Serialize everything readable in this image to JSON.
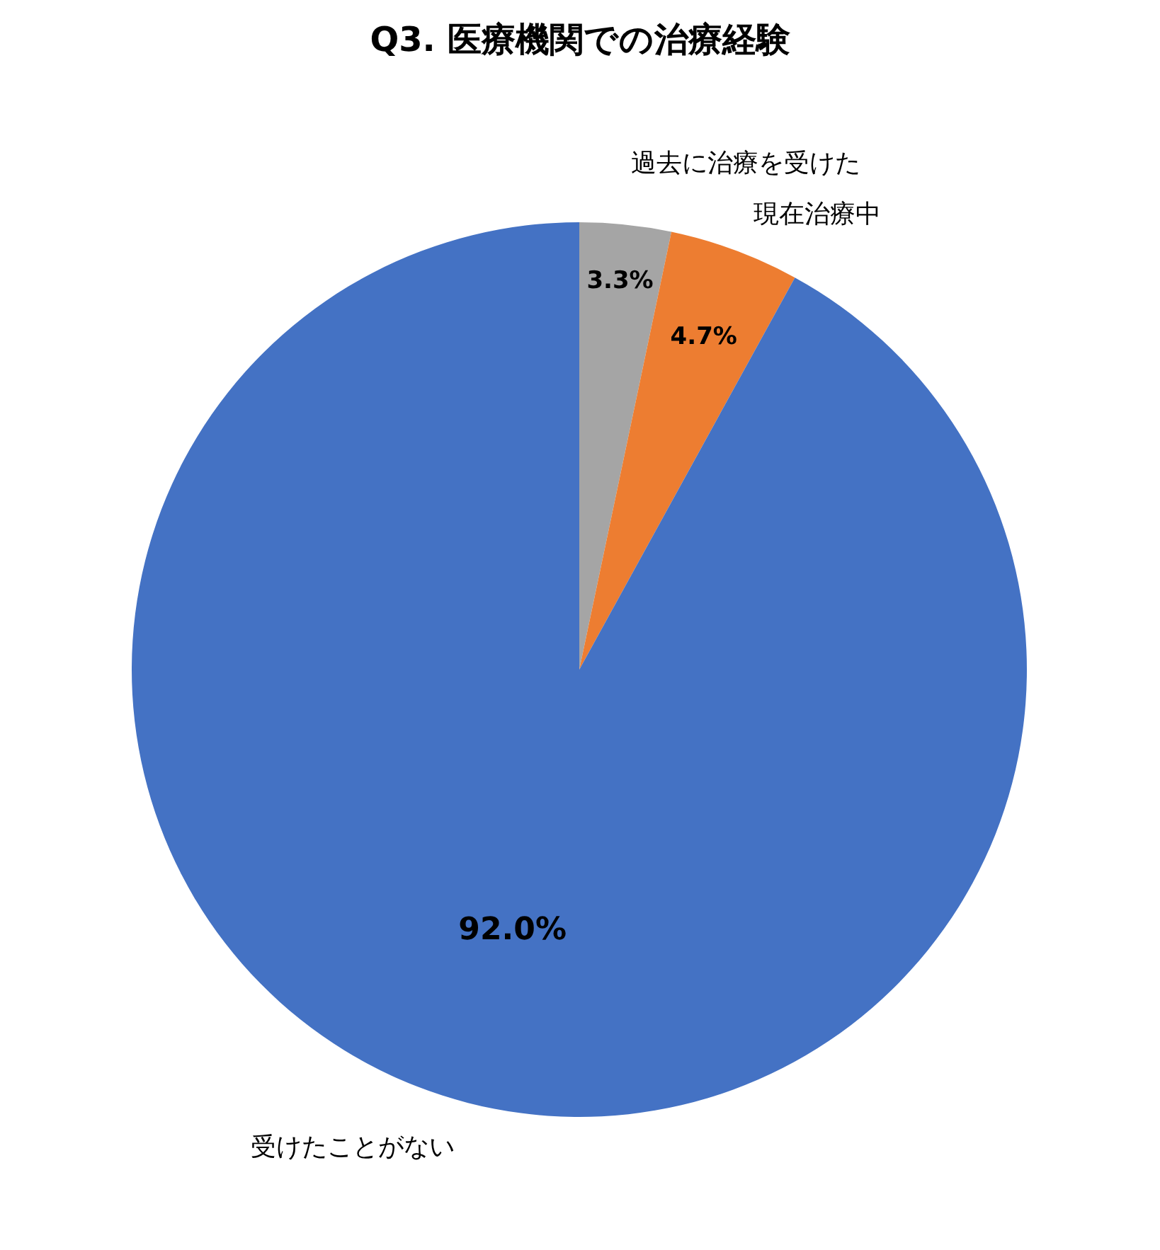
{
  "chart_data": {
    "type": "pie",
    "title": "Q3. 医療機関での治療経験",
    "categories": [
      "過去に治療を受けた",
      "現在治療中",
      "受けたことがない"
    ],
    "values": [
      3.3,
      4.7,
      92.0
    ],
    "colors": [
      "#a5a5a5",
      "#ed7d31",
      "#4472c4"
    ],
    "value_labels": [
      "3.3%",
      "4.7%",
      "92.0%"
    ]
  }
}
